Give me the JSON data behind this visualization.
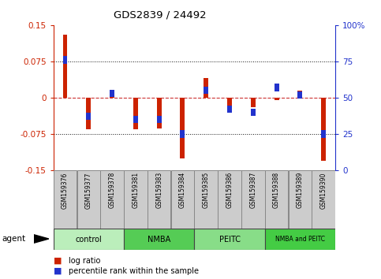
{
  "title": "GDS2839 / 24492",
  "samples": [
    "GSM159376",
    "GSM159377",
    "GSM159378",
    "GSM159381",
    "GSM159383",
    "GSM159384",
    "GSM159385",
    "GSM159386",
    "GSM159387",
    "GSM159388",
    "GSM159389",
    "GSM159390"
  ],
  "log_ratio": [
    0.13,
    -0.065,
    0.005,
    -0.065,
    -0.063,
    -0.125,
    0.04,
    -0.02,
    -0.02,
    -0.005,
    0.015,
    -0.13
  ],
  "percentile_rank": [
    76,
    37,
    53,
    35,
    35,
    25,
    55,
    42,
    40,
    57,
    52,
    25
  ],
  "groups": [
    {
      "label": "control",
      "start": 0,
      "end": 3,
      "color": "#bbeebb"
    },
    {
      "label": "NMBA",
      "start": 3,
      "end": 6,
      "color": "#55cc55"
    },
    {
      "label": "PEITC",
      "start": 6,
      "end": 9,
      "color": "#88dd88"
    },
    {
      "label": "NMBA and PEITC",
      "start": 9,
      "end": 12,
      "color": "#44cc44"
    }
  ],
  "ylim": [
    -0.15,
    0.15
  ],
  "yticks_left": [
    -0.15,
    -0.075,
    0,
    0.075,
    0.15
  ],
  "yticks_right": [
    0,
    25,
    50,
    75,
    100
  ],
  "bar_color": "#cc2200",
  "dot_color": "#2233cc",
  "ref_line_color": "#cc3333",
  "grid_color": "#111111",
  "background_color": "#ffffff",
  "sample_box_color": "#cccccc",
  "legend_bar_label": "log ratio",
  "legend_dot_label": "percentile rank within the sample",
  "bar_width": 0.4,
  "dot_size": 0.015
}
